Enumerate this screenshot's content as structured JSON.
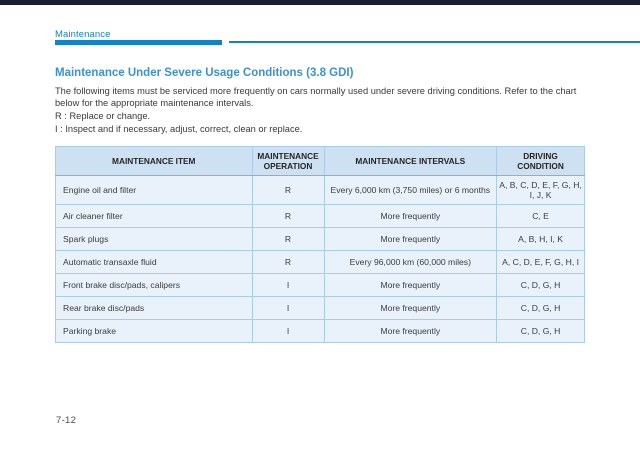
{
  "page": {
    "breadcrumb": "Maintenance",
    "page_number": "7-12"
  },
  "section": {
    "title": "Maintenance Under Severe Usage Conditions (3.8 GDI)",
    "intro": "The following items must be serviced more frequently on cars normally used under severe driving conditions. Refer to the chart below for the appropriate maintenance intervals.",
    "legend_r": "R : Replace or change.",
    "legend_i": "I  : Inspect and if necessary, adjust, correct, clean or replace."
  },
  "table": {
    "headers": [
      "MAINTENANCE ITEM",
      "MAINTENANCE OPERATION",
      "MAINTENANCE INTERVALS",
      "DRIVING CONDITION"
    ],
    "rows": [
      {
        "item": "Engine oil and filter",
        "operation": "R",
        "interval": "Every 6,000 km (3,750 miles) or 6 months",
        "condition": "A, B, C, D, E, F, G, H, I, J, K"
      },
      {
        "item": "Air cleaner filter",
        "operation": "R",
        "interval": "More frequently",
        "condition": "C, E"
      },
      {
        "item": "Spark plugs",
        "operation": "R",
        "interval": "More frequently",
        "condition": "A, B, H, I, K"
      },
      {
        "item": "Automatic transaxle fluid",
        "operation": "R",
        "interval": "Every 96,000 km (60,000 miles)",
        "condition": "A, C, D, E, F, G, H, I"
      },
      {
        "item": "Front brake disc/pads, calipers",
        "operation": "I",
        "interval": "More frequently",
        "condition": "C, D, G, H"
      },
      {
        "item": "Rear brake disc/pads",
        "operation": "I",
        "interval": "More frequently",
        "condition": "C, D, G, H"
      },
      {
        "item": "Parking brake",
        "operation": "I",
        "interval": "More frequently",
        "condition": "C, D, G, H"
      }
    ]
  },
  "colors": {
    "accent_blue": "#1482c8",
    "heading_blue": "#3b92d2",
    "table_header_bg": "#cde1f2",
    "table_row_bg": "#e9f2fa",
    "table_border": "#a9cde7",
    "top_bar": "#1a1e30",
    "body_text": "#3a3a3a"
  }
}
